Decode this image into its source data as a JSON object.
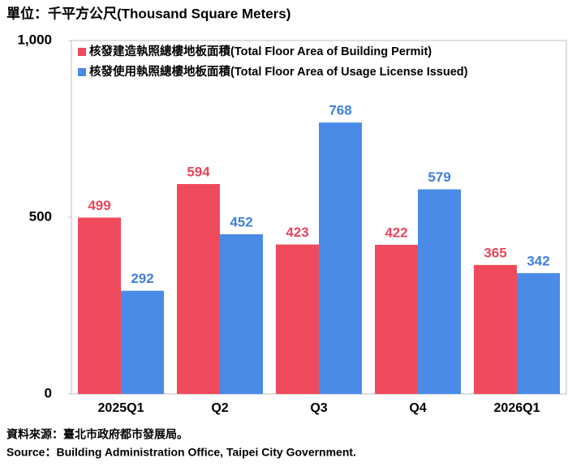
{
  "chart_data": {
    "type": "bar",
    "title": "單位：千平方公尺(Thousand Square Meters)",
    "categories": [
      "2025Q1",
      "Q2",
      "Q3",
      "Q4",
      "2026Q1"
    ],
    "series": [
      {
        "name": "核發建造執照總樓地板面積(Total Floor Area of Building Permit)",
        "color": "#f04b5c",
        "label_color": "#e8455a",
        "values": [
          499,
          594,
          423,
          422,
          365
        ]
      },
      {
        "name": "核發使用執照總樓地板面積(Total Floor Area of Usage License Issued)",
        "color": "#4a8be8",
        "label_color": "#3f7fdc",
        "values": [
          292,
          452,
          768,
          579,
          342
        ]
      }
    ],
    "ylim": [
      0,
      1000
    ],
    "yticks": [
      0,
      500,
      {
        "value": 1000,
        "label": "1,000"
      }
    ],
    "grid": false,
    "legend": "top-left",
    "notes": [
      "資料來源：臺北市政府都市發展局。",
      "Source：Building Administration Office, Taipei City Government."
    ]
  }
}
